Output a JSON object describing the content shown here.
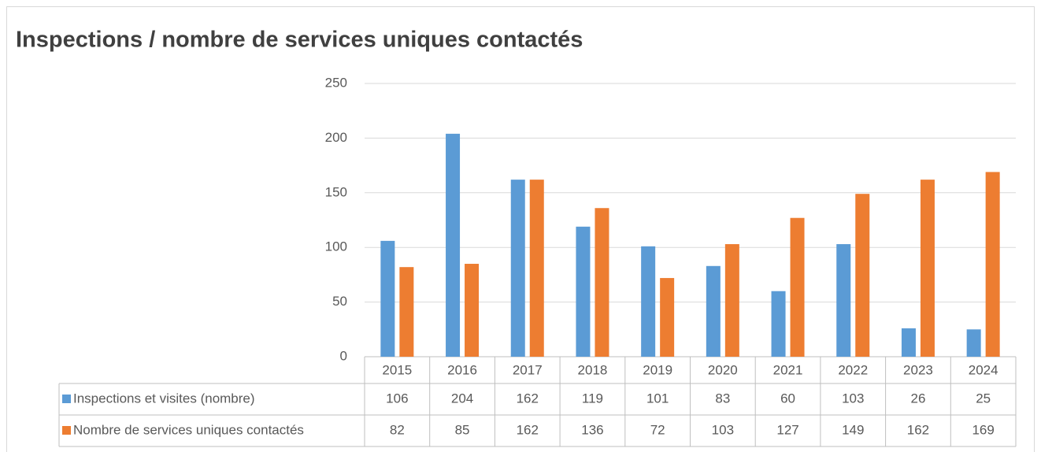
{
  "chart_data": {
    "type": "bar",
    "title": "Inspections / nombre de services uniques contactés",
    "categories": [
      "2015",
      "2016",
      "2017",
      "2018",
      "2019",
      "2020",
      "2021",
      "2022",
      "2023",
      "2024"
    ],
    "series": [
      {
        "name": "Inspections et visites (nombre)",
        "color": "#5b9bd5",
        "values": [
          106,
          204,
          162,
          119,
          101,
          83,
          60,
          103,
          26,
          25
        ]
      },
      {
        "name": "Nombre de services uniques contactés",
        "color": "#ed7d31",
        "values": [
          82,
          85,
          162,
          136,
          72,
          103,
          127,
          149,
          162,
          169
        ]
      }
    ],
    "ylim": [
      0,
      250
    ],
    "yticks": [
      0,
      50,
      100,
      150,
      200,
      250
    ],
    "grid": true
  }
}
